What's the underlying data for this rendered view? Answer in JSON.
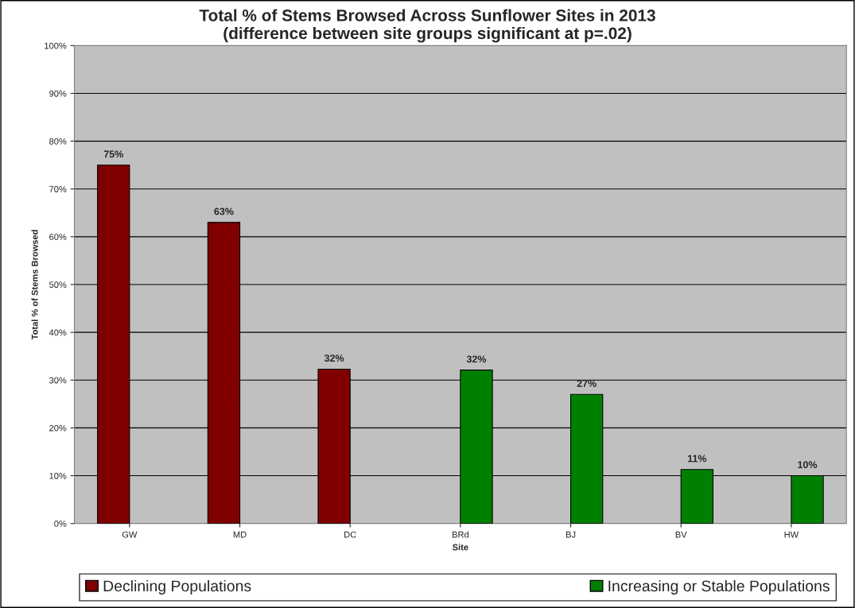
{
  "chart_data": {
    "type": "bar",
    "title": "Total % of Stems Browsed Across Sunflower Sites in 2013\n(difference between site groups significant at p=.02)",
    "xlabel": "Site",
    "ylabel": "Total % of Stems Browsed",
    "categories": [
      "GW",
      "MD",
      "DC",
      "BRd",
      "BJ",
      "BV",
      "HW"
    ],
    "series": [
      {
        "name": "Declining Populations",
        "color": "#800000",
        "values": [
          75,
          63,
          32.3,
          null,
          null,
          null,
          null
        ],
        "value_labels": [
          "75%",
          "63%",
          "32%",
          null,
          null,
          null,
          null
        ]
      },
      {
        "name": "Increasing or Stable Populations",
        "color": "#008000",
        "values": [
          null,
          null,
          null,
          32.1,
          27,
          11.3,
          10
        ],
        "value_labels": [
          null,
          null,
          null,
          "32%",
          "27%",
          "11%",
          "10%"
        ]
      }
    ],
    "ylim": [
      0,
      100
    ],
    "yticks": [
      {
        "value": 0,
        "label": "0%"
      },
      {
        "value": 10,
        "label": "10%"
      },
      {
        "value": 20,
        "label": "20%"
      },
      {
        "value": 30,
        "label": "30%"
      },
      {
        "value": 40,
        "label": "40%"
      },
      {
        "value": 50,
        "label": "50%"
      },
      {
        "value": 60,
        "label": "60%"
      },
      {
        "value": 70,
        "label": "70%"
      },
      {
        "value": 80,
        "label": "80%"
      },
      {
        "value": 90,
        "label": "90%"
      },
      {
        "value": 100,
        "label": "100%"
      }
    ],
    "grid": "y",
    "legend": "bottom"
  }
}
